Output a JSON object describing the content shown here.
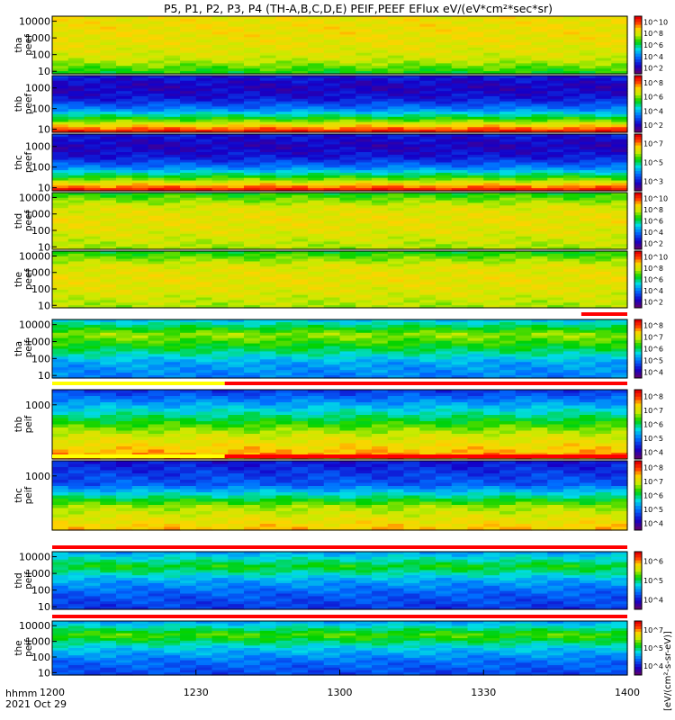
{
  "title": "P5, P1, P2, P3, P4 (TH-A,B,C,D,E) PEIF,PEEF EFlux eV/(eV*cm²*sec*sr)",
  "x_axis": {
    "ticks": [
      "1200",
      "1230",
      "1300",
      "1330",
      "1400"
    ],
    "tick_hours": [
      12.0,
      12.5,
      13.0,
      13.5,
      14.0
    ],
    "range_hours": [
      12.0,
      14.0
    ],
    "label_line1": "hhmm",
    "label_line2": "2021 Oct 29"
  },
  "colorbar_title": "[eV/(cm²-s-sr-eV)]",
  "colors": {
    "low": "#1a00c8",
    "mid": "#00e000",
    "high": "#ff0000",
    "flag_red": "#ff0000",
    "flag_yellow": "#ffff00",
    "axes": "#000000"
  },
  "chart_data": {
    "type": "heatmap",
    "y_scale": "log",
    "x_units": "UT hours",
    "panels": [
      {
        "name": "tha peef",
        "label1": "tha",
        "label2": "peef",
        "yticks": [
          "10000",
          "1000",
          "100",
          "10"
        ],
        "ytick_values": [
          10000,
          1000,
          100,
          10
        ],
        "cbar_ticks": [
          "10^10",
          "10^8",
          "10^6",
          "10^4",
          "10^2"
        ],
        "level_by_decade": [
          7.5,
          7.6,
          7.4,
          7.0,
          5.5
        ],
        "scheme": "green"
      },
      {
        "name": "thb peef",
        "label1": "thb",
        "label2": "peef",
        "yticks": [
          "1000",
          "100",
          "10"
        ],
        "ytick_values": [
          1000,
          100,
          10
        ],
        "cbar_ticks": [
          "10^8",
          "10^6",
          "10^4",
          "10^2"
        ],
        "level_by_decade": [
          1.5,
          1.0,
          1.5,
          3.0,
          6.0,
          9.5
        ],
        "scheme": "band"
      },
      {
        "name": "thc peef",
        "label1": "thc",
        "label2": "peef",
        "yticks": [
          "1000",
          "100",
          "10"
        ],
        "ytick_values": [
          1000,
          100,
          10
        ],
        "cbar_ticks": [
          "10^7",
          "10^5",
          "10^3"
        ],
        "level_by_decade": [
          1.5,
          1.0,
          1.5,
          3.0,
          6.0,
          9.5
        ],
        "scheme": "band"
      },
      {
        "name": "thd peef",
        "label1": "thd",
        "label2": "peef",
        "yticks": [
          "10000",
          "1000",
          "100",
          "10"
        ],
        "ytick_values": [
          10000,
          1000,
          100,
          10
        ],
        "cbar_ticks": [
          "10^10",
          "10^8",
          "10^6",
          "10^4",
          "10^2"
        ],
        "level_by_decade": [
          5.5,
          7.2,
          7.5,
          7.2,
          6.6
        ],
        "scheme": "green"
      },
      {
        "name": "the peef",
        "label1": "the",
        "label2": "peef",
        "yticks": [
          "10000",
          "1000",
          "100",
          "10"
        ],
        "ytick_values": [
          10000,
          1000,
          100,
          10
        ],
        "cbar_ticks": [
          "10^10",
          "10^8",
          "10^6",
          "10^4",
          "10^2"
        ],
        "level_by_decade": [
          5.5,
          7.2,
          7.5,
          7.2,
          6.6
        ],
        "scheme": "green"
      },
      {
        "name": "tha peif",
        "label1": "tha",
        "label2": "peif",
        "yticks": [
          "10000",
          "1000",
          "100",
          "10"
        ],
        "ytick_values": [
          10000,
          1000,
          100,
          10
        ],
        "cbar_ticks": [
          "10^8",
          "10^7",
          "10^6",
          "10^5",
          "10^4"
        ],
        "level_by_decade": [
          4.0,
          6.5,
          5.2,
          3.5,
          3.0
        ],
        "scheme": "ion"
      },
      {
        "name": "thb peif",
        "label1": "thb",
        "label2": "peif",
        "yticks": [
          "1000"
        ],
        "ytick_values": [
          1000
        ],
        "cbar_ticks": [
          "10^8",
          "10^7",
          "10^6",
          "10^5",
          "10^4"
        ],
        "level_by_decade": [
          2.0,
          4.5,
          7.0,
          8.5
        ],
        "scheme": "ionband"
      },
      {
        "name": "thc peif",
        "label1": "thc",
        "label2": "peif",
        "yticks": [
          "1000"
        ],
        "ytick_values": [
          1000
        ],
        "cbar_ticks": [
          "10^8",
          "10^7",
          "10^6",
          "10^5",
          "10^4"
        ],
        "level_by_decade": [
          1.5,
          2.5,
          6.5,
          8.0
        ],
        "scheme": "ionband"
      },
      {
        "name": "thd peif",
        "label1": "thd",
        "label2": "peif",
        "yticks": [
          "10000",
          "1000",
          "100",
          "10"
        ],
        "ytick_values": [
          10000,
          1000,
          100,
          10
        ],
        "cbar_ticks": [
          "10^6",
          "10^5",
          "10^4"
        ],
        "level_by_decade": [
          3.5,
          5.5,
          3.5,
          2.5,
          2.0
        ],
        "scheme": "ion"
      },
      {
        "name": "the peif",
        "label1": "the",
        "label2": "peif",
        "yticks": [
          "10000",
          "1000",
          "100",
          "10"
        ],
        "ytick_values": [
          10000,
          1000,
          100,
          10
        ],
        "cbar_ticks": [
          "10^7",
          "10^5",
          "10^4"
        ],
        "level_by_decade": [
          3.5,
          6.0,
          4.0,
          2.8,
          2.2
        ],
        "scheme": "ion"
      }
    ]
  }
}
